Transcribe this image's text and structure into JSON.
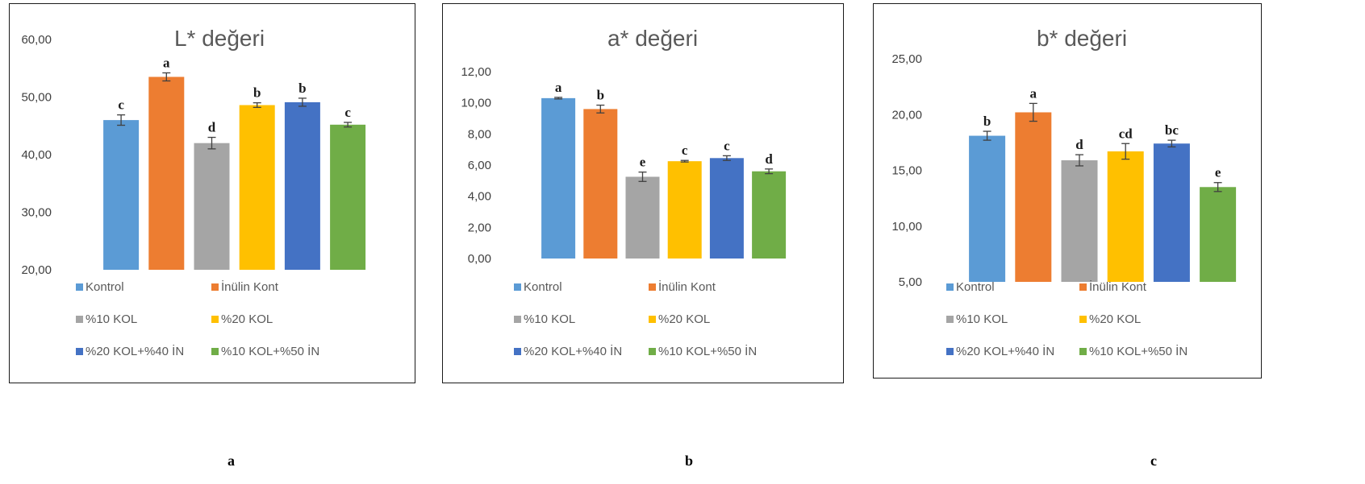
{
  "chart_data": [
    {
      "type": "bar",
      "title": "L* değeri",
      "categories": [
        "Kontrol",
        "İnülin Kont",
        "%10 KOL",
        "%20 KOL",
        "%20 KOL+%40 İN",
        "%10 KOL+%50 İN"
      ],
      "values": [
        46.0,
        53.5,
        42.0,
        48.6,
        49.1,
        45.2
      ],
      "errors": [
        0.9,
        0.7,
        1.0,
        0.4,
        0.7,
        0.4
      ],
      "significance": [
        "c",
        "a",
        "d",
        "b",
        "b",
        "c"
      ],
      "ylim": [
        20,
        60
      ],
      "yticks": [
        "20,00",
        "30,00",
        "40,00",
        "50,00",
        "60,00"
      ],
      "legend": "bottom",
      "grid": false,
      "caption": "a"
    },
    {
      "type": "bar",
      "title": "a* değeri",
      "categories": [
        "Kontrol",
        "İnülin Kont",
        "%10 KOL",
        "%20 KOL",
        "%20 KOL+%40 İN",
        "%10 KOL+%50 İN"
      ],
      "values": [
        10.3,
        9.6,
        5.25,
        6.25,
        6.45,
        5.6
      ],
      "errors": [
        0.05,
        0.25,
        0.3,
        0.05,
        0.15,
        0.15
      ],
      "significance": [
        "a",
        "b",
        "e",
        "c",
        "c",
        "d"
      ],
      "ylim": [
        0,
        12
      ],
      "yticks": [
        "0,00",
        "2,00",
        "4,00",
        "6,00",
        "8,00",
        "10,00",
        "12,00"
      ],
      "legend": "bottom",
      "grid": false,
      "caption": "b"
    },
    {
      "type": "bar",
      "title": "b* değeri",
      "categories": [
        "Kontrol",
        "İnülin Kont",
        "%10 KOL",
        "%20 KOL",
        "%20 KOL+%40 İN",
        "%10 KOL+%50 İN"
      ],
      "values": [
        18.1,
        20.2,
        15.9,
        16.7,
        17.4,
        13.5
      ],
      "errors": [
        0.4,
        0.8,
        0.5,
        0.7,
        0.3,
        0.4
      ],
      "significance": [
        "b",
        "a",
        "d",
        "cd",
        "bc",
        "e"
      ],
      "ylim": [
        5,
        25
      ],
      "yticks": [
        "5,00",
        "10,00",
        "15,00",
        "20,00",
        "25,00"
      ],
      "legend": "bottom",
      "grid": false,
      "caption": "c"
    }
  ],
  "colors": [
    "#5b9bd5",
    "#ed7d31",
    "#a5a5a5",
    "#ffc000",
    "#4472c4",
    "#70ad47"
  ]
}
